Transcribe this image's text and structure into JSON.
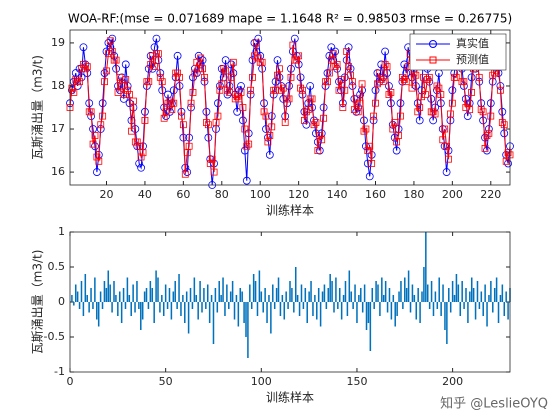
{
  "chart_data": [
    {
      "type": "line",
      "title": "WOA-RF:(mse = 0.071689 mape = 1.1648  R² = 0.98503 rmse = 0.26775)",
      "x_label": "训练样本",
      "y_label": "瓦斯涌出量（m3/t)",
      "x": [
        1,
        2,
        3,
        4,
        5,
        6,
        7,
        8,
        9,
        10,
        11,
        12,
        13,
        14,
        15,
        16,
        17,
        18,
        19,
        20,
        21,
        22,
        23,
        24,
        25,
        26,
        27,
        28,
        29,
        30,
        31,
        32,
        33,
        34,
        35,
        36,
        37,
        38,
        39,
        40,
        41,
        42,
        43,
        44,
        45,
        46,
        47,
        48,
        49,
        50,
        51,
        52,
        53,
        54,
        55,
        56,
        57,
        58,
        59,
        60,
        61,
        62,
        63,
        64,
        65,
        66,
        67,
        68,
        69,
        70,
        71,
        72,
        73,
        74,
        75,
        76,
        77,
        78,
        79,
        80,
        81,
        82,
        83,
        84,
        85,
        86,
        87,
        88,
        89,
        90,
        91,
        92,
        93,
        94,
        95,
        96,
        97,
        98,
        99,
        100,
        101,
        102,
        103,
        104,
        105,
        106,
        107,
        108,
        109,
        110,
        111,
        112,
        113,
        114,
        115,
        116,
        117,
        118,
        119,
        120,
        121,
        122,
        123,
        124,
        125,
        126,
        127,
        128,
        129,
        130,
        131,
        132,
        133,
        134,
        135,
        136,
        137,
        138,
        139,
        140,
        141,
        142,
        143,
        144,
        145,
        146,
        147,
        148,
        149,
        150,
        151,
        152,
        153,
        154,
        155,
        156,
        157,
        158,
        159,
        160,
        161,
        162,
        163,
        164,
        165,
        166,
        167,
        168,
        169,
        170,
        171,
        172,
        173,
        174,
        175,
        176,
        177,
        178,
        179,
        180,
        181,
        182,
        183,
        184,
        185,
        186,
        187,
        188,
        189,
        190,
        191,
        192,
        193,
        194,
        195,
        196,
        197,
        198,
        199,
        200,
        201,
        202,
        203,
        204,
        205,
        206,
        207,
        208,
        209,
        210,
        211,
        212,
        213,
        214,
        215,
        216,
        217,
        218,
        219,
        220,
        221,
        222,
        223,
        224,
        225,
        226,
        227,
        228,
        229,
        230
      ],
      "series": [
        {
          "name": "真实值",
          "color": "#0000ff",
          "marker": "circle",
          "values": [
            17.6,
            17.9,
            18.1,
            18.3,
            18.0,
            18.4,
            18.2,
            18.9,
            18.5,
            18.3,
            17.6,
            17.3,
            17.0,
            16.6,
            16.0,
            16.4,
            17.0,
            17.6,
            18.3,
            18.8,
            19.0,
            18.9,
            19.1,
            18.7,
            18.4,
            18.0,
            17.9,
            18.2,
            17.7,
            18.5,
            18.0,
            17.6,
            17.2,
            17.5,
            17.0,
            16.6,
            16.2,
            16.1,
            16.6,
            17.4,
            18.0,
            18.4,
            18.7,
            18.4,
            18.9,
            19.1,
            18.6,
            18.3,
            17.9,
            17.5,
            17.3,
            17.8,
            17.4,
            17.6,
            17.9,
            18.2,
            18.7,
            18.0,
            17.4,
            16.8,
            16.1,
            16.0,
            16.8,
            17.5,
            18.2,
            18.4,
            18.3,
            18.7,
            18.5,
            18.6,
            18.1,
            17.4,
            16.8,
            16.3,
            15.7,
            16.2,
            17.0,
            17.6,
            18.0,
            18.4,
            18.2,
            18.6,
            17.8,
            18.0,
            18.5,
            18.3,
            17.8,
            17.4,
            17.9,
            18.0,
            17.2,
            16.5,
            15.8,
            16.9,
            17.8,
            18.6,
            19.0,
            18.8,
            19.1,
            18.7,
            18.4,
            17.6,
            17.0,
            16.8,
            16.4,
            17.3,
            17.8,
            18.1,
            18.6,
            18.2,
            18.0,
            17.7,
            17.3,
            17.6,
            18.0,
            18.4,
            18.8,
            19.1,
            18.7,
            18.5,
            18.2,
            17.8,
            17.4,
            17.1,
            17.6,
            18.0,
            17.5,
            17.2,
            16.9,
            16.7,
            16.5,
            16.9,
            17.5,
            18.0,
            18.3,
            18.7,
            18.9,
            18.6,
            18.8,
            18.4,
            18.1,
            17.9,
            17.6,
            18.2,
            18.6,
            18.9,
            18.4,
            18.0,
            17.7,
            17.4,
            17.5,
            17.8,
            17.9,
            17.2,
            16.6,
            16.2,
            15.9,
            16.4,
            17.2,
            17.9,
            18.3,
            18.1,
            18.5,
            18.2,
            18.8,
            18.3,
            18.0,
            17.6,
            17.1,
            16.8,
            16.5,
            17.0,
            17.6,
            18.1,
            18.5,
            18.3,
            18.9,
            18.6,
            18.2,
            18.4,
            18.0,
            17.6,
            17.2,
            17.9,
            18.7,
            18.8,
            18.4,
            18.1,
            17.7,
            17.2,
            17.5,
            17.9,
            18.3,
            17.6,
            17.0,
            16.6,
            16.0,
            16.5,
            17.2,
            17.9,
            18.3,
            18.6,
            18.9,
            18.7,
            18.4,
            18.0,
            17.7,
            17.3,
            17.6,
            18.2,
            18.6,
            18.4,
            18.8,
            18.1,
            17.6,
            17.2,
            16.8,
            16.5,
            17.0,
            17.6,
            18.1,
            18.5,
            18.7,
            18.3,
            18.0,
            17.4,
            16.9,
            16.4,
            16.2,
            16.6
          ]
        },
        {
          "name": "预测值",
          "color": "#ff0000",
          "marker": "square",
          "values": [
            17.5,
            17.95,
            17.85,
            18.15,
            18.1,
            18.1,
            18.4,
            18.5,
            18.4,
            18.45,
            17.4,
            17.4,
            16.65,
            16.85,
            16.35,
            16.25,
            17.1,
            17.3,
            18.1,
            18.35,
            18.75,
            19.05,
            18.8,
            18.6,
            18.6,
            17.85,
            18.2,
            18.0,
            17.8,
            18.15,
            17.9,
            17.8,
            16.95,
            17.65,
            16.7,
            16.7,
            16.6,
            16.35,
            16.45,
            17.2,
            18.1,
            18.1,
            18.5,
            18.7,
            18.45,
            18.75,
            18.75,
            18.2,
            18.1,
            17.25,
            17.4,
            17.6,
            17.65,
            17.45,
            17.6,
            18.3,
            18.3,
            18.2,
            17.3,
            17.1,
            15.95,
            16.45,
            16.6,
            17.6,
            17.85,
            18.3,
            18.55,
            18.4,
            18.65,
            18.4,
            18.2,
            17.15,
            17.1,
            16.2,
            16.3,
            16.0,
            17.15,
            17.3,
            17.9,
            18.05,
            18.4,
            18.35,
            17.9,
            17.85,
            18.2,
            18.55,
            17.7,
            17.75,
            17.7,
            17.85,
            17.5,
            17.0,
            16.6,
            16.65,
            17.9,
            18.2,
            18.7,
            19.0,
            18.65,
            18.55,
            18.55,
            17.4,
            17.3,
            16.7,
            16.85,
            17.05,
            17.9,
            17.9,
            18.25,
            18.4,
            17.9,
            17.95,
            17.15,
            17.7,
            17.7,
            18.2,
            18.95,
            18.6,
            18.6,
            18.7,
            17.95,
            17.9,
            17.2,
            17.4,
            17.45,
            17.7,
            17.7,
            17.1,
            17.15,
            16.5,
            16.85,
            16.75,
            17.25,
            18.1,
            18.1,
            18.3,
            18.6,
            18.75,
            18.45,
            18.5,
            17.9,
            18.15,
            17.5,
            17.9,
            18.8,
            18.45,
            18.25,
            18.1,
            17.45,
            17.7,
            17.4,
            17.6,
            18.05,
            16.95,
            17.0,
            16.5,
            16.6,
            16.2,
            17.3,
            17.6,
            18.05,
            18.3,
            18.15,
            18.1,
            18.5,
            18.45,
            17.8,
            17.85,
            17.0,
            17.15,
            16.7,
            16.85,
            17.3,
            18.2,
            18.15,
            18.1,
            18.45,
            18.75,
            17.95,
            18.3,
            18.25,
            17.4,
            17.5,
            17.75,
            18.2,
            17.8,
            18.15,
            18.2,
            17.4,
            17.4,
            17.35,
            18.0,
            17.95,
            17.8,
            16.75,
            17.0,
            16.6,
            16.3,
            17.35,
            17.6,
            18.2,
            18.2,
            18.65,
            18.9,
            18.1,
            18.1,
            17.5,
            17.6,
            17.45,
            17.85,
            18.4,
            18.65,
            18.5,
            18.2,
            17.45,
            17.4,
            16.55,
            16.85,
            16.9,
            17.3,
            18.25,
            18.3,
            18.35,
            18.6,
            17.9,
            17.15,
            17.1,
            16.25,
            16.45,
            16.4
          ]
        }
      ],
      "xlim": [
        1,
        230
      ],
      "xticks": [
        20,
        40,
        60,
        80,
        100,
        120,
        140,
        160,
        180,
        200,
        220
      ],
      "ylim": [
        15.7,
        19.3
      ],
      "yticks": [
        16,
        17,
        18,
        19
      ],
      "legend": "northeast"
    },
    {
      "type": "bar",
      "x_label": "训练样本",
      "y_label": "瓦斯涌出量（m3/t)",
      "x": [
        1,
        2,
        3,
        4,
        5,
        6,
        7,
        8,
        9,
        10,
        11,
        12,
        13,
        14,
        15,
        16,
        17,
        18,
        19,
        20,
        21,
        22,
        23,
        24,
        25,
        26,
        27,
        28,
        29,
        30,
        31,
        32,
        33,
        34,
        35,
        36,
        37,
        38,
        39,
        40,
        41,
        42,
        43,
        44,
        45,
        46,
        47,
        48,
        49,
        50,
        51,
        52,
        53,
        54,
        55,
        56,
        57,
        58,
        59,
        60,
        61,
        62,
        63,
        64,
        65,
        66,
        67,
        68,
        69,
        70,
        71,
        72,
        73,
        74,
        75,
        76,
        77,
        78,
        79,
        80,
        81,
        82,
        83,
        84,
        85,
        86,
        87,
        88,
        89,
        90,
        91,
        92,
        93,
        94,
        95,
        96,
        97,
        98,
        99,
        100,
        101,
        102,
        103,
        104,
        105,
        106,
        107,
        108,
        109,
        110,
        111,
        112,
        113,
        114,
        115,
        116,
        117,
        118,
        119,
        120,
        121,
        122,
        123,
        124,
        125,
        126,
        127,
        128,
        129,
        130,
        131,
        132,
        133,
        134,
        135,
        136,
        137,
        138,
        139,
        140,
        141,
        142,
        143,
        144,
        145,
        146,
        147,
        148,
        149,
        150,
        151,
        152,
        153,
        154,
        155,
        156,
        157,
        158,
        159,
        160,
        161,
        162,
        163,
        164,
        165,
        166,
        167,
        168,
        169,
        170,
        171,
        172,
        173,
        174,
        175,
        176,
        177,
        178,
        179,
        180,
        181,
        182,
        183,
        184,
        185,
        186,
        187,
        188,
        189,
        190,
        191,
        192,
        193,
        194,
        195,
        196,
        197,
        198,
        199,
        200,
        201,
        202,
        203,
        204,
        205,
        206,
        207,
        208,
        209,
        210,
        211,
        212,
        213,
        214,
        215,
        216,
        217,
        218,
        219,
        220,
        221,
        222,
        223,
        224,
        225,
        226,
        227,
        228,
        229,
        230
      ],
      "values": [
        0.1,
        -0.05,
        0.25,
        0.15,
        -0.1,
        0.3,
        -0.2,
        0.4,
        0.1,
        -0.15,
        0.2,
        -0.1,
        0.35,
        -0.25,
        -0.35,
        0.15,
        -0.1,
        0.3,
        0.2,
        0.45,
        0.25,
        -0.15,
        0.3,
        0.1,
        -0.2,
        0.15,
        -0.3,
        0.2,
        -0.1,
        0.35,
        0.1,
        -0.2,
        0.25,
        -0.15,
        0.3,
        -0.1,
        -0.4,
        -0.25,
        0.15,
        0.2,
        -0.1,
        0.3,
        0.2,
        -0.3,
        0.45,
        0.35,
        -0.15,
        0.1,
        -0.2,
        0.25,
        -0.1,
        0.2,
        -0.25,
        0.15,
        0.3,
        -0.1,
        0.4,
        -0.2,
        0.1,
        -0.3,
        0.15,
        -0.45,
        0.2,
        -0.1,
        0.35,
        0.1,
        -0.25,
        0.3,
        -0.15,
        0.2,
        -0.1,
        0.25,
        -0.3,
        0.1,
        -0.6,
        0.2,
        -0.15,
        0.3,
        0.1,
        0.35,
        -0.2,
        0.25,
        -0.1,
        0.15,
        0.3,
        -0.25,
        0.1,
        -0.35,
        0.2,
        0.15,
        -0.3,
        -0.5,
        -0.8,
        0.25,
        -0.1,
        0.4,
        0.3,
        -0.2,
        0.45,
        0.15,
        -0.15,
        0.2,
        -0.3,
        0.1,
        -0.45,
        0.25,
        -0.1,
        0.2,
        0.35,
        -0.2,
        0.1,
        -0.25,
        0.15,
        -0.1,
        0.3,
        0.2,
        -0.15,
        0.5,
        0.1,
        -0.2,
        0.25,
        -0.1,
        0.2,
        -0.3,
        0.15,
        0.3,
        -0.2,
        0.1,
        -0.25,
        0.2,
        -0.35,
        0.15,
        0.25,
        -0.1,
        0.2,
        0.4,
        0.3,
        -0.15,
        0.35,
        -0.1,
        0.2,
        -0.25,
        0.1,
        0.3,
        -0.2,
        0.45,
        0.15,
        -0.1,
        0.25,
        -0.3,
        0.1,
        0.2,
        -0.15,
        0.25,
        -0.4,
        -0.3,
        -0.7,
        0.2,
        -0.1,
        0.3,
        0.25,
        -0.2,
        0.35,
        0.1,
        0.3,
        -0.15,
        0.2,
        -0.25,
        0.1,
        -0.35,
        -0.2,
        0.15,
        0.3,
        -0.1,
        0.35,
        0.2,
        0.45,
        -0.15,
        0.25,
        0.1,
        -0.25,
        0.2,
        -0.3,
        0.15,
        0.5,
        1.0,
        0.25,
        -0.1,
        0.3,
        -0.2,
        0.15,
        -0.1,
        0.35,
        -0.2,
        0.25,
        -0.4,
        -0.6,
        0.2,
        -0.15,
        0.3,
        0.1,
        0.4,
        0.25,
        -0.2,
        0.3,
        -0.1,
        0.2,
        -0.3,
        0.15,
        0.35,
        0.2,
        -0.25,
        0.3,
        -0.1,
        0.15,
        -0.2,
        0.25,
        -0.35,
        0.1,
        0.3,
        -0.15,
        0.2,
        0.35,
        -0.3,
        0.1,
        0.25,
        -0.2,
        0.15,
        -0.25,
        0.2
      ],
      "color": "#0072bd",
      "xlim": [
        0,
        230
      ],
      "xticks": [
        0,
        50,
        100,
        150,
        200
      ],
      "ylim": [
        -1,
        1
      ],
      "yticks": [
        -1,
        -0.5,
        0,
        0.5,
        1
      ]
    }
  ],
  "watermark": "知乎 @LeslieOYQ"
}
